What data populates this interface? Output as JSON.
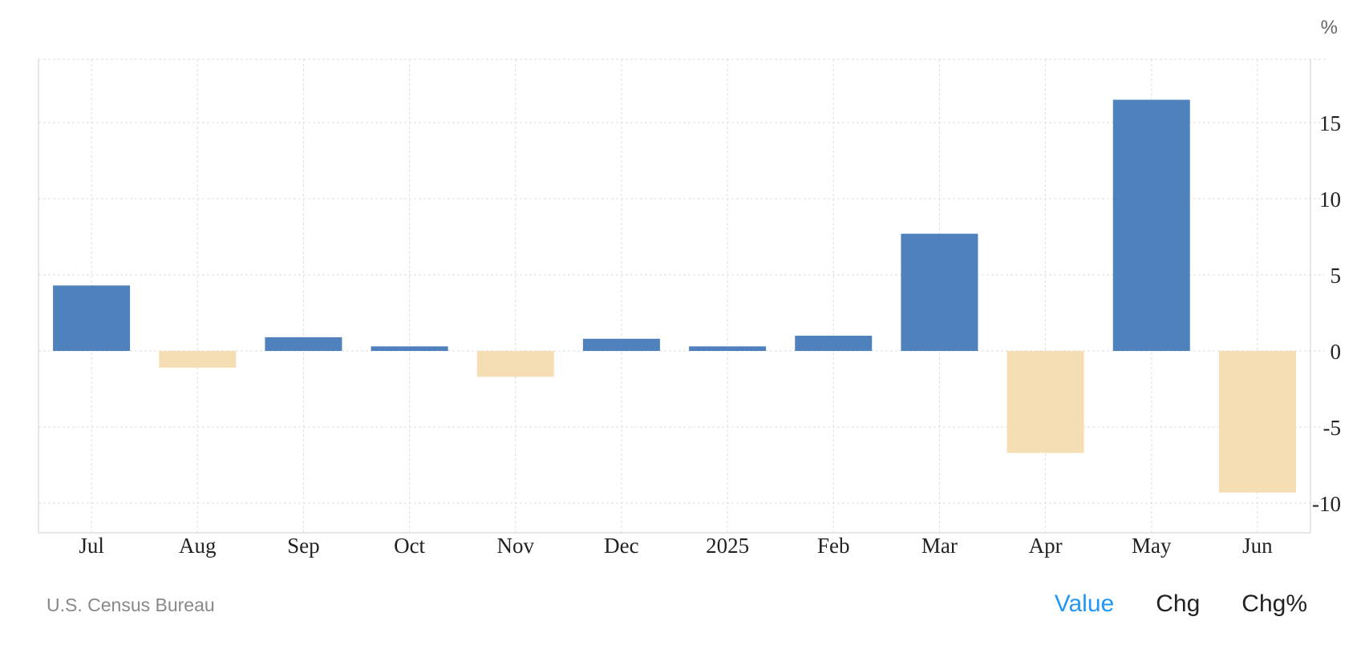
{
  "chart_data": {
    "type": "bar",
    "unit": "%",
    "categories": [
      "Jul",
      "Aug",
      "Sep",
      "Oct",
      "Nov",
      "Dec",
      "2025",
      "Feb",
      "Mar",
      "Apr",
      "May",
      "Jun"
    ],
    "values": [
      4.3,
      -1.1,
      0.9,
      0.3,
      -1.7,
      0.8,
      0.3,
      1.0,
      7.7,
      -6.7,
      16.5,
      -9.3
    ],
    "y_ticks": [
      "15",
      "10",
      "5",
      "0",
      "-5",
      "-10"
    ],
    "ylim": [
      -12,
      19
    ],
    "grid": true,
    "colors": {
      "positive": "#4f81bd",
      "negative": "#f5deb3",
      "grid": "#dddddd",
      "axis": "#cccccc"
    }
  },
  "footer": {
    "source": "U.S. Census Bureau",
    "tabs": [
      {
        "label": "Value",
        "active": true
      },
      {
        "label": "Chg",
        "active": false
      },
      {
        "label": "Chg%",
        "active": false
      }
    ]
  }
}
